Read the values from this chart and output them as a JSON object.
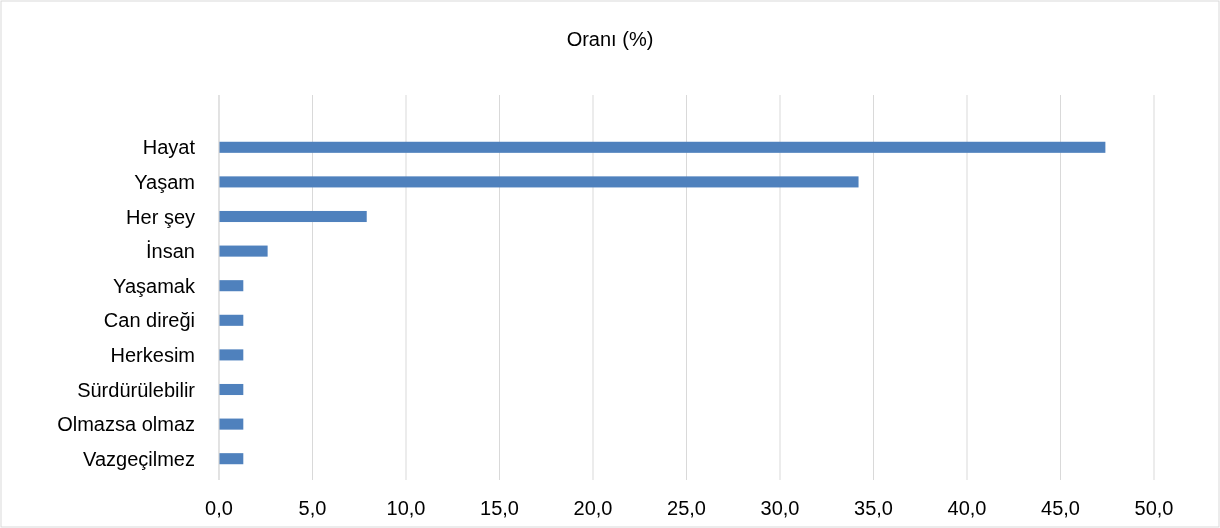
{
  "chart_data": {
    "type": "bar",
    "orientation": "horizontal",
    "title": "Oranı (%)",
    "categories": [
      "Hayat",
      "Yaşam",
      "Her şey",
      "İnsan",
      "Yaşamak",
      "Can direği",
      "Herkesim",
      "Sürdürülebilir",
      "Olmazsa olmaz",
      "Vazgeçilmez"
    ],
    "values": [
      47.4,
      34.2,
      7.9,
      2.6,
      1.3,
      1.3,
      1.3,
      1.3,
      1.3,
      1.3
    ],
    "color": "#4f81bd",
    "xlim": [
      0,
      50
    ],
    "xticks": [
      {
        "value": 0,
        "label": "0,0"
      },
      {
        "value": 5,
        "label": "5,0"
      },
      {
        "value": 10,
        "label": "10,0"
      },
      {
        "value": 15,
        "label": "15,0"
      },
      {
        "value": 20,
        "label": "20,0"
      },
      {
        "value": 25,
        "label": "25,0"
      },
      {
        "value": 30,
        "label": "30,0"
      },
      {
        "value": 35,
        "label": "35,0"
      },
      {
        "value": 40,
        "label": "40,0"
      },
      {
        "value": 45,
        "label": "45,0"
      },
      {
        "value": 50,
        "label": "50,0"
      }
    ],
    "grid": "x"
  }
}
